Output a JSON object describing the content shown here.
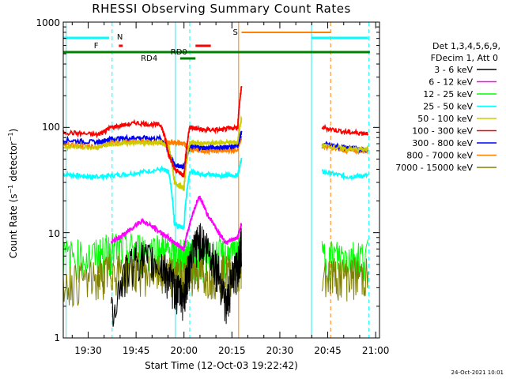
{
  "chart_data": {
    "type": "line",
    "title": "RHESSI Observing Summary Count Rates",
    "xlabel": "Start Time (12-Oct-03 19:22:42)",
    "ylabel_main": "Count Rate (s",
    "ylabel_sup1": "−1",
    "ylabel_mid": " detector",
    "ylabel_sup2": "−1",
    "ylabel_end": ")",
    "ylabel": "Count Rate (s−1 detector−1)",
    "yscale": "log",
    "ylim": [
      1,
      1000
    ],
    "ytick_labels": [
      "1",
      "10",
      "100",
      "1000"
    ],
    "xlim_minutes": [
      19.37,
      21.02
    ],
    "x_tick_labels": [
      "19:30",
      "19:45",
      "20:00",
      "20:15",
      "20:30",
      "20:45",
      "21:00"
    ],
    "legend_header": [
      "Det 1,3,4,5,6,9,",
      "FDecim 1, Att 0"
    ],
    "series": [
      {
        "name": "3 - 6 keV",
        "color": "#000000",
        "x": [
          19.37,
          19.55,
          19.62,
          19.75,
          19.88,
          19.95,
          20.0,
          20.03,
          20.08,
          20.15,
          20.22,
          20.28,
          20.3,
          20.4,
          20.5,
          20.7,
          20.8,
          20.95
        ],
        "y": [
          null,
          null,
          1.6,
          6,
          5,
          3,
          2.5,
          5,
          9,
          6,
          2,
          5,
          8,
          null,
          null,
          null,
          null,
          null
        ]
      },
      {
        "name": "6 - 12 keV",
        "color": "#ff00ff",
        "x": [
          19.37,
          19.55,
          19.62,
          19.7,
          19.78,
          19.88,
          19.95,
          20.0,
          20.03,
          20.08,
          20.12,
          20.18,
          20.22,
          20.28,
          20.3
        ],
        "y": [
          null,
          null,
          8,
          10,
          13,
          10,
          8,
          7,
          12,
          22,
          15,
          10,
          8,
          9,
          12
        ]
      },
      {
        "name": "12 - 25 keV",
        "color": "#00ff00",
        "x": [
          19.37,
          19.55,
          19.62,
          19.75,
          19.88,
          19.95,
          20.0,
          20.03,
          20.1,
          20.2,
          20.28,
          20.3,
          20.42,
          20.63,
          20.72,
          20.85,
          20.96
        ],
        "y": [
          6,
          6,
          7,
          7,
          7,
          6,
          6,
          6,
          6,
          6,
          6,
          7,
          null,
          null,
          6,
          6,
          6
        ]
      },
      {
        "name": "25 - 50 keV",
        "color": "#00ffff",
        "x": [
          19.37,
          19.5,
          19.55,
          19.7,
          19.88,
          19.92,
          19.95,
          20.0,
          20.03,
          20.1,
          20.2,
          20.28,
          20.3,
          20.42,
          20.63,
          20.72,
          20.85,
          20.96
        ],
        "y": [
          36,
          34,
          34,
          36,
          40,
          38,
          12,
          11,
          38,
          36,
          35,
          35,
          50,
          null,
          null,
          38,
          34,
          35
        ]
      },
      {
        "name": "50 - 100 keV",
        "color": "#cccc00",
        "x": [
          19.37,
          19.55,
          19.62,
          19.75,
          19.88,
          19.92,
          19.95,
          20.0,
          20.03,
          20.1,
          20.2,
          20.28,
          20.3,
          20.42,
          20.63,
          20.72,
          20.85,
          20.96
        ],
        "y": [
          65,
          65,
          70,
          72,
          72,
          65,
          30,
          26,
          72,
          70,
          72,
          72,
          120,
          null,
          null,
          68,
          62,
          62
        ]
      },
      {
        "name": "100 - 300 keV",
        "color": "#ff0000",
        "x": [
          19.37,
          19.55,
          19.62,
          19.75,
          19.88,
          19.92,
          19.95,
          20.0,
          20.03,
          20.1,
          20.2,
          20.28,
          20.3,
          20.42,
          20.63,
          20.72,
          20.85,
          20.96
        ],
        "y": [
          90,
          85,
          100,
          110,
          105,
          55,
          40,
          35,
          100,
          95,
          95,
          100,
          240,
          null,
          null,
          100,
          90,
          88
        ]
      },
      {
        "name": "300 - 800 keV",
        "color": "#0000ff",
        "x": [
          19.37,
          19.55,
          19.62,
          19.75,
          19.88,
          19.95,
          20.0,
          20.03,
          20.1,
          20.2,
          20.28,
          20.3,
          20.42,
          20.63,
          20.72,
          20.85,
          20.96
        ],
        "y": [
          76,
          72,
          78,
          80,
          78,
          44,
          42,
          66,
          64,
          65,
          66,
          90,
          null,
          null,
          70,
          64,
          62
        ]
      },
      {
        "name": "800 - 7000 keV",
        "color": "#ff8000",
        "x": [
          19.37,
          19.55,
          19.62,
          19.75,
          19.88,
          19.95,
          20.0,
          20.03,
          20.1,
          20.2,
          20.28,
          20.3,
          20.42,
          20.63,
          20.72,
          20.85,
          20.96
        ],
        "y": [
          68,
          66,
          72,
          74,
          72,
          72,
          70,
          62,
          60,
          60,
          62,
          80,
          null,
          null,
          66,
          60,
          60
        ]
      },
      {
        "name": "7000 - 15000 keV",
        "color": "#808000",
        "x": [
          19.37,
          19.55,
          19.62,
          19.75,
          19.88,
          19.95,
          20.0,
          20.03,
          20.1,
          20.2,
          20.28,
          20.3,
          20.42,
          20.63,
          20.72,
          20.85,
          20.96
        ],
        "y": [
          3.5,
          3.7,
          4.5,
          4.5,
          4.2,
          4,
          3.8,
          4.5,
          4.2,
          4.2,
          4.5,
          5,
          null,
          null,
          4.2,
          4,
          4
        ]
      }
    ],
    "flag_bars": [
      {
        "label": "N",
        "color": "#00ffff"
      },
      {
        "label": "F",
        "color": "#ff0000"
      },
      {
        "label": "RD0",
        "color": "#008000"
      },
      {
        "label": "RD4",
        "color": "#008000"
      },
      {
        "label": "S",
        "color": "#ff8000"
      }
    ],
    "grid": false,
    "legend_position": "right"
  },
  "timestamp": "24-Oct-2021 10:01"
}
